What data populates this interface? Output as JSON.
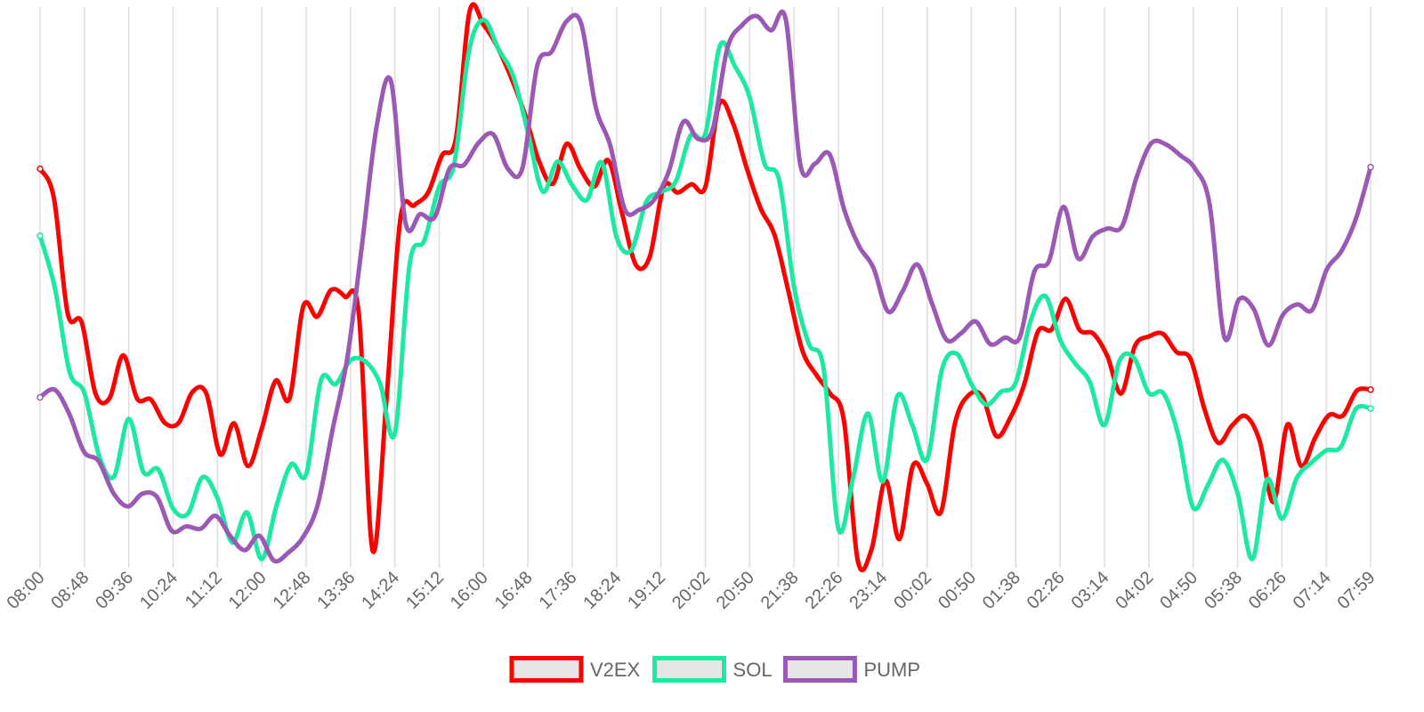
{
  "chart_data": {
    "type": "line",
    "title": "",
    "xlabel": "",
    "ylabel": "",
    "x_tick_labels": [
      "08:00",
      "08:48",
      "09:36",
      "10:24",
      "11:12",
      "12:00",
      "12:48",
      "13:36",
      "14:24",
      "15:12",
      "16:00",
      "16:48",
      "17:36",
      "18:24",
      "19:12",
      "20:02",
      "20:50",
      "21:38",
      "22:26",
      "23:14",
      "00:02",
      "00:50",
      "01:38",
      "02:26",
      "03:14",
      "04:02",
      "04:50",
      "05:38",
      "06:26",
      "07:14",
      "07:59"
    ],
    "ylim": [
      0,
      100
    ],
    "grid": "vertical",
    "legend_position": "bottom",
    "series": [
      {
        "name": "V2EX",
        "color": "#ff0000",
        "values": [
          70.8,
          65.5,
          44.6,
          43.1,
          30.2,
          29.3,
          37.1,
          29.3,
          29.1,
          24.9,
          24.9,
          30.5,
          30.2,
          19.2,
          24.8,
          17.1,
          23.9,
          32.5,
          29.3,
          46.0,
          44.1,
          48.9,
          47.7,
          44.6,
          1.8,
          29.3,
          61.8,
          64.2,
          66.5,
          73.2,
          76.2,
          99.3,
          96.8,
          92.8,
          87.2,
          80.5,
          72.2,
          68.1,
          75.3,
          70.7,
          67.6,
          72.3,
          62.7,
          53.4,
          55.0,
          67.6,
          66.5,
          68.0,
          67.5,
          82.5,
          79.0,
          70.8,
          63.6,
          58.8,
          48.6,
          38.0,
          33.6,
          30.2,
          25.3,
          0.0,
          2.1,
          14.5,
          3.9,
          17.3,
          13.9,
          8.8,
          24.7,
          29.9,
          29.6,
          22.5,
          25.8,
          31.8,
          41.4,
          41.8,
          47.3,
          41.7,
          41.0,
          37.0,
          30.2,
          38.8,
          40.5,
          41.0,
          37.7,
          36.5,
          27.5,
          21.3,
          24.4,
          26.1,
          21.6,
          10.6,
          24.6,
          17.1,
          22.2,
          26.3,
          26.2,
          30.7,
          30.9
        ]
      },
      {
        "name": "SOL",
        "color": "#1de9a0",
        "values": [
          58.7,
          49.3,
          34.1,
          30.3,
          18.9,
          15.2,
          25.6,
          16.0,
          16.5,
          9.4,
          8.5,
          15.1,
          11.3,
          3.3,
          8.7,
          0.3,
          10.0,
          17.4,
          15.6,
          32.6,
          31.9,
          36.2,
          36.0,
          32.0,
          23.0,
          53.6,
          57.9,
          67.6,
          71.5,
          91.9,
          97.7,
          92.5,
          87.6,
          77.4,
          66.7,
          72.1,
          67.8,
          65.2,
          71.9,
          58.4,
          56.1,
          64.8,
          66.6,
          68.5,
          76.8,
          77.1,
          93.1,
          89.3,
          83.7,
          71.8,
          68.7,
          49.5,
          39.2,
          34.7,
          5.8,
          15.0,
          26.6,
          14.3,
          29.8,
          24.5,
          18.3,
          34.5,
          37.4,
          31.9,
          28.2,
          30.5,
          32.2,
          43.3,
          47.8,
          39.9,
          35.7,
          32.3,
          24.5,
          36.0,
          36.6,
          30.3,
          30.2,
          22.6,
          9.6,
          13.7,
          18.2,
          12.2,
          0.3,
          14.7,
          7.6,
          14.9,
          17.7,
          19.9,
          20.6,
          27.4,
          27.5
        ]
      },
      {
        "name": "PUMP",
        "color": "#9b59b6",
        "values": [
          29.5,
          30.9,
          26.5,
          19.7,
          18.0,
          12.3,
          9.8,
          12.1,
          11.5,
          5.4,
          6.2,
          5.8,
          8.1,
          4.5,
          1.9,
          4.5,
          0.0,
          1.5,
          4.3,
          10.2,
          23.6,
          36.4,
          56.6,
          78.1,
          86.6,
          61.0,
          62.6,
          62.1,
          70.8,
          71.5,
          75.5,
          77.0,
          70.8,
          71.0,
          89.4,
          92.0,
          97.4,
          97.1,
          82.0,
          75.0,
          63.4,
          63.4,
          65.2,
          70.3,
          79.3,
          76.2,
          77.9,
          92.5,
          96.7,
          98.4,
          95.8,
          97.8,
          71.5,
          71.7,
          73.4,
          63.4,
          56.9,
          52.9,
          45.0,
          48.7,
          53.5,
          46.5,
          39.9,
          41.1,
          43.2,
          39.1,
          40.3,
          40.3,
          52.2,
          54.1,
          63.9,
          54.6,
          58.6,
          60.0,
          60.4,
          69.3,
          75.4,
          75.2,
          73.2,
          70.8,
          64.2,
          40.4,
          47.2,
          45.5,
          38.9,
          44.4,
          46.3,
          45.3,
          52.6,
          55.9,
          61.8,
          71.1
        ]
      }
    ]
  }
}
